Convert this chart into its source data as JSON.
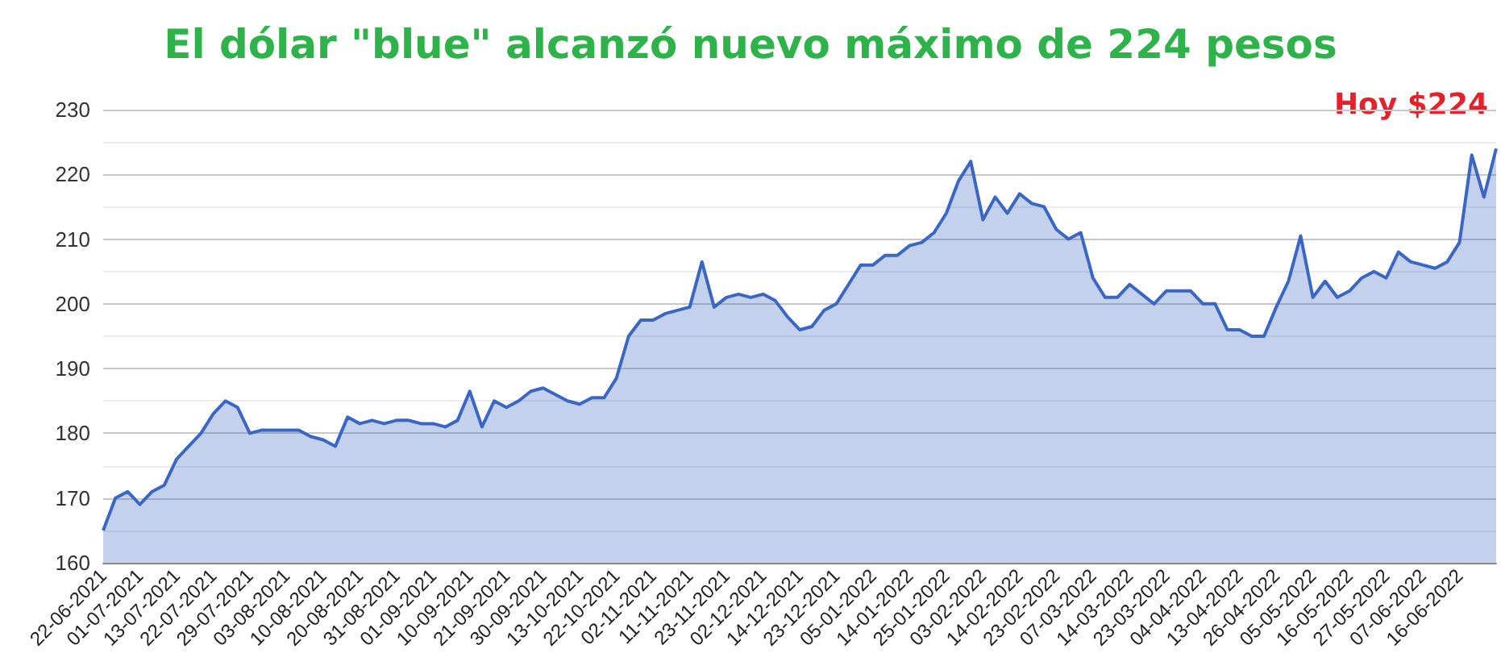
{
  "chart_data": {
    "type": "area",
    "title": "El dólar \"blue\" alcanzó nuevo máximo de 224 pesos",
    "categories": [
      "22-06-2021",
      null,
      null,
      "01-07-2021",
      null,
      null,
      "13-07-2021",
      null,
      null,
      "22-07-2021",
      null,
      null,
      "29-07-2021",
      null,
      null,
      "03-08-2021",
      null,
      null,
      "10-08-2021",
      null,
      null,
      "20-08-2021",
      null,
      null,
      "31-08-2021",
      null,
      null,
      "01-09-2021",
      null,
      null,
      "10-09-2021",
      null,
      null,
      "21-09-2021",
      null,
      null,
      "30-09-2021",
      null,
      null,
      "13-10-2021",
      null,
      null,
      "22-10-2021",
      null,
      null,
      "02-11-2021",
      null,
      null,
      "11-11-2021",
      null,
      null,
      "23-11-2021",
      null,
      null,
      "02-12-2021",
      null,
      null,
      "14-12-2021",
      null,
      null,
      "23-12-2021",
      null,
      null,
      "05-01-2022",
      null,
      null,
      "14-01-2022",
      null,
      null,
      "25-01-2022",
      null,
      null,
      "03-02-2022",
      null,
      null,
      "14-02-2022",
      null,
      null,
      "23-02-2022",
      null,
      null,
      "07-03-2022",
      null,
      null,
      "14-03-2022",
      null,
      null,
      "23-03-2022",
      null,
      null,
      "04-04-2022",
      null,
      null,
      "13-04-2022",
      null,
      null,
      "26-04-2022",
      null,
      null,
      "05-05-2022",
      null,
      null,
      "16-05-2022",
      null,
      null,
      "27-05-2022",
      null,
      null,
      "07-06-2022",
      null,
      null,
      "16-06-2022",
      null,
      null,
      null
    ],
    "series": [
      {
        "color": "#3a66c4",
        "values": [
          165,
          170,
          171,
          169,
          171,
          172,
          176,
          178,
          180,
          183,
          185,
          184,
          180,
          180.5,
          180.5,
          180.5,
          180.5,
          179.5,
          179,
          178,
          182.5,
          181.5,
          182,
          181.5,
          182,
          182,
          181.5,
          181.5,
          181,
          182,
          186.5,
          181,
          185,
          184,
          185,
          186.5,
          187,
          186,
          185,
          184.5,
          185.5,
          185.5,
          188.5,
          195,
          197.5,
          197.5,
          198.5,
          199,
          199.5,
          206.5,
          199.5,
          201,
          201.5,
          201,
          201.5,
          200.5,
          198,
          196,
          196.5,
          199,
          200,
          203,
          206,
          206,
          207.5,
          207.5,
          209,
          209.5,
          211,
          214,
          219,
          222,
          213,
          216.5,
          214,
          217,
          215.5,
          215,
          211.5,
          210,
          211,
          204,
          201,
          201,
          203,
          201.5,
          200,
          202,
          202,
          202,
          200,
          200,
          196,
          196,
          195,
          195,
          199.5,
          203.5,
          210.5,
          201,
          203.5,
          201,
          202,
          204,
          205,
          204,
          208,
          206.5,
          206,
          205.5,
          206.5,
          209.5,
          223,
          216.5,
          224
        ]
      }
    ],
    "ylim": [
      160,
      230
    ],
    "yticks": [
      160,
      170,
      180,
      190,
      200,
      210,
      220,
      230
    ],
    "grid": "y",
    "marker": "none",
    "line_style": "solid",
    "annotations": [
      "Hoy $224"
    ]
  }
}
